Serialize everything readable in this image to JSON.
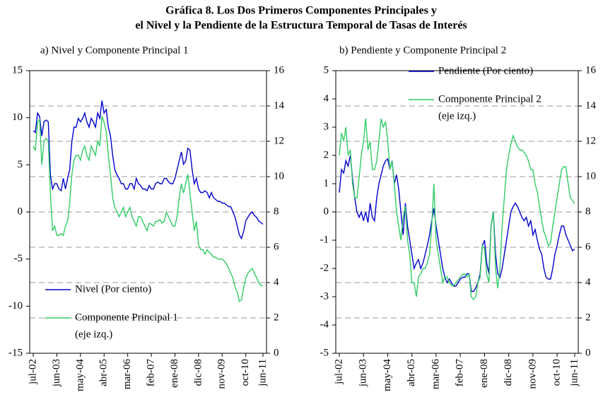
{
  "title": [
    "Gráfica 8. Los Dos Primeros Componentes Principales y",
    "el Nivel y la Pendiente de la Estructura Temporal de Tasas de Interés"
  ],
  "chart_data": [
    {
      "type": "line",
      "title": "a) Nivel y Componente Principal 1",
      "categories": [
        "jul-02",
        null,
        null,
        null,
        null,
        null,
        null,
        null,
        null,
        null,
        null,
        "jun-03",
        null,
        null,
        null,
        null,
        null,
        null,
        null,
        null,
        null,
        null,
        "may-04",
        null,
        null,
        null,
        null,
        null,
        null,
        null,
        null,
        null,
        null,
        "abr-05",
        null,
        null,
        null,
        null,
        null,
        null,
        null,
        null,
        null,
        null,
        "mar-06",
        null,
        null,
        null,
        null,
        null,
        null,
        null,
        null,
        null,
        null,
        "feb-07",
        null,
        null,
        null,
        null,
        null,
        null,
        null,
        null,
        null,
        null,
        "ene-08",
        null,
        null,
        null,
        null,
        null,
        null,
        null,
        null,
        null,
        null,
        "dic-08",
        null,
        null,
        null,
        null,
        null,
        null,
        null,
        null,
        null,
        null,
        "nov-09",
        null,
        null,
        null,
        null,
        null,
        null,
        null,
        null,
        null,
        null,
        "oct-10",
        null,
        null,
        null,
        null,
        null,
        null,
        null,
        "jun-11"
      ],
      "series": [
        {
          "name": "Nivel (Por ciento)",
          "color": "#0000cc",
          "axis": "y2",
          "values": [
            12.6,
            12.5,
            13.6,
            13.4,
            12.3,
            13.1,
            13.2,
            13.1,
            10.1,
            9.3,
            9.6,
            9.6,
            9.3,
            9.2,
            9.9,
            9.3,
            9.9,
            10.4,
            12.0,
            12.8,
            12.8,
            13.3,
            13.1,
            13.3,
            13.6,
            13.1,
            12.8,
            13.3,
            13.1,
            12.8,
            13.6,
            13.3,
            14.3,
            13.6,
            13.8,
            12.8,
            12.3,
            11.2,
            10.4,
            10.1,
            9.9,
            9.6,
            9.6,
            9.3,
            9.3,
            9.6,
            9.6,
            9.3,
            9.9,
            9.6,
            9.5,
            9.3,
            9.3,
            9.2,
            9.5,
            9.3,
            9.3,
            9.6,
            9.7,
            9.6,
            9.6,
            9.9,
            9.9,
            9.7,
            9.6,
            9.6,
            9.9,
            10.4,
            10.9,
            11.4,
            10.7,
            10.9,
            11.6,
            11.5,
            10.4,
            9.6,
            9.9,
            9.3,
            9.1,
            9.1,
            9.2,
            9.1,
            8.8,
            9.1,
            8.8,
            8.7,
            8.6,
            8.6,
            8.5,
            8.5,
            8.4,
            8.3,
            8.3,
            8.0,
            7.7,
            7.2,
            6.7,
            6.5,
            6.9,
            7.5,
            7.7,
            7.9,
            8.0,
            7.8,
            7.7,
            7.5,
            7.4,
            7.3
          ]
        },
        {
          "name": "Componente Principal 1",
          "note": "(eje izq.)",
          "color": "#33cc66",
          "axis": "y",
          "values": [
            7,
            6.5,
            9.5,
            9.8,
            5,
            7.5,
            7.8,
            7.5,
            2,
            -2,
            -1.5,
            -2.5,
            -2.5,
            -2.3,
            -2.5,
            -1.5,
            -1,
            1,
            4,
            5.5,
            6,
            6,
            5.5,
            6.5,
            7,
            6,
            5.5,
            7,
            6.5,
            6,
            7.5,
            7,
            10.2,
            9.5,
            8.5,
            6,
            4,
            1.5,
            0.5,
            0,
            -0.5,
            0,
            0.5,
            -0.5,
            0,
            0.5,
            -0.5,
            -1,
            -1.5,
            -0.5,
            -0.5,
            -1,
            -1.5,
            -2,
            -1.2,
            -1.3,
            -1.5,
            -1,
            -1,
            -0.8,
            -1.2,
            -1,
            0,
            -0.5,
            -1,
            -1.5,
            -1.5,
            -0.5,
            1.5,
            3,
            2,
            3,
            4,
            2,
            0,
            -2,
            -1,
            -3.5,
            -4,
            -4,
            -4.5,
            -4,
            -4.3,
            -4.5,
            -4.8,
            -4.8,
            -5,
            -5,
            -5,
            -5.2,
            -5.5,
            -6,
            -6.5,
            -7,
            -8,
            -8.5,
            -9.5,
            -9.3,
            -8,
            -7,
            -6.5,
            -6.2,
            -6,
            -6.5,
            -7,
            -7.5,
            -7.8,
            -7.8
          ]
        }
      ],
      "ylim": [
        -15,
        15
      ],
      "yticks": [
        -15,
        -10,
        -5,
        0,
        5,
        10,
        15
      ],
      "y2lim": [
        0,
        16
      ],
      "y2ticks": [
        0,
        2,
        4,
        6,
        8,
        10,
        12,
        14,
        16
      ],
      "grid": true,
      "legend": "lower left"
    },
    {
      "type": "line",
      "title": "b) Pendiente y Componente Principal 2",
      "categories": [
        "jul-02",
        null,
        null,
        null,
        null,
        null,
        null,
        null,
        null,
        null,
        null,
        "jun-03",
        null,
        null,
        null,
        null,
        null,
        null,
        null,
        null,
        null,
        null,
        "may-04",
        null,
        null,
        null,
        null,
        null,
        null,
        null,
        null,
        null,
        null,
        "abr-05",
        null,
        null,
        null,
        null,
        null,
        null,
        null,
        null,
        null,
        null,
        "mar-06",
        null,
        null,
        null,
        null,
        null,
        null,
        null,
        null,
        null,
        null,
        "feb-07",
        null,
        null,
        null,
        null,
        null,
        null,
        null,
        null,
        null,
        null,
        "ene-08",
        null,
        null,
        null,
        null,
        null,
        null,
        null,
        null,
        null,
        null,
        "dic-08",
        null,
        null,
        null,
        null,
        null,
        null,
        null,
        null,
        null,
        null,
        "nov-09",
        null,
        null,
        null,
        null,
        null,
        null,
        null,
        null,
        null,
        null,
        "oct-10",
        null,
        null,
        null,
        null,
        null,
        null,
        null,
        "jun-11"
      ],
      "series": [
        {
          "name": "Pendiente (Por ciento)",
          "color": "#0000cc",
          "axis": "y2",
          "values": [
            9.1,
            10.4,
            10.2,
            10.9,
            10.6,
            11.2,
            9.9,
            8.8,
            8.0,
            7.7,
            8.0,
            7.5,
            8.0,
            7.4,
            8.5,
            7.7,
            7.5,
            8.8,
            9.6,
            10.1,
            10.6,
            10.9,
            11.0,
            10.4,
            10.9,
            9.6,
            10.1,
            9.3,
            8.0,
            6.7,
            8.5,
            7.2,
            6.4,
            5.6,
            4.8,
            5.1,
            5.3,
            4.8,
            5.1,
            5.6,
            6.1,
            6.7,
            7.5,
            8.2,
            7.2,
            6.4,
            5.6,
            4.8,
            4.3,
            4.0,
            4.2,
            4.0,
            3.8,
            3.8,
            4.0,
            4.2,
            4.3,
            4.3,
            4.5,
            4.5,
            3.5,
            3.5,
            3.7,
            4.0,
            4.5,
            6.1,
            6.4,
            5.1,
            4.5,
            7.2,
            8.0,
            5.6,
            4.5,
            4.3,
            4.8,
            5.6,
            6.4,
            7.2,
            8.0,
            8.3,
            8.5,
            8.3,
            8.0,
            7.7,
            7.5,
            7.7,
            7.2,
            7.5,
            6.7,
            7.0,
            6.4,
            5.9,
            5.6,
            4.8,
            4.3,
            4.2,
            4.2,
            4.8,
            5.6,
            6.1,
            6.7,
            7.2,
            7.2,
            6.7,
            6.4,
            6.1,
            5.8,
            5.9
          ]
        },
        {
          "name": "Componente Principal 2",
          "note": "(eje izq.)",
          "color": "#33cc66",
          "axis": "y",
          "values": [
            2,
            2.8,
            2.5,
            3,
            2,
            2.2,
            1,
            0.5,
            0.5,
            1.2,
            2,
            2.5,
            3.3,
            2.2,
            2.5,
            1.5,
            1.5,
            1.8,
            2.5,
            3.3,
            3,
            3.2,
            2.5,
            1.5,
            1.8,
            1,
            0,
            -0.5,
            -1,
            -0.2,
            0.2,
            -1,
            -1.5,
            -2.5,
            -2.5,
            -3,
            -2.3,
            -2.2,
            -2,
            -2,
            -1.8,
            -1.5,
            -0.5,
            1,
            -1,
            -1.5,
            -2,
            -2.5,
            -2.3,
            -2.3,
            -2.5,
            -2.6,
            -2.6,
            -2.5,
            -2.4,
            -2.3,
            -2.2,
            -2.2,
            -2.3,
            -2.2,
            -3,
            -3.1,
            -3,
            -2.5,
            -2.3,
            -1.2,
            -1.3,
            -2.2,
            -2.5,
            -0.5,
            0,
            -2,
            -2.7,
            -2,
            -0.5,
            0.5,
            1.5,
            2,
            2.4,
            2.7,
            2.5,
            2.3,
            2.2,
            2.2,
            2.1,
            2,
            1.8,
            1.5,
            1.5,
            1,
            0.7,
            0.2,
            -0.3,
            -0.7,
            -0.9,
            -1.2,
            -1.1,
            -0.5,
            0,
            0.5,
            1,
            1.5,
            1.6,
            1.6,
            1,
            0.5,
            0.4,
            0.3
          ]
        }
      ],
      "ylim": [
        -5,
        5
      ],
      "yticks": [
        -5,
        -4,
        -3,
        -2,
        -1,
        0,
        1,
        2,
        3,
        4,
        5
      ],
      "y2lim": [
        0,
        16
      ],
      "y2ticks": [
        0,
        2,
        4,
        6,
        8,
        10,
        12,
        14,
        16
      ],
      "grid": true,
      "legend": "upper center"
    }
  ]
}
